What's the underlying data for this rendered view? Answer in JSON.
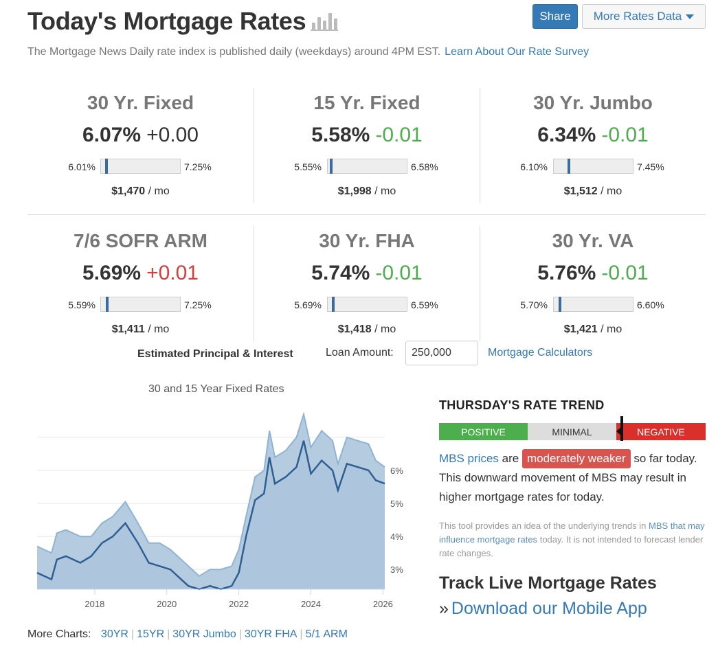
{
  "header": {
    "title": "Today's Mortgage Rates",
    "share_label": "Share",
    "more_label": "More Rates Data",
    "subtitle": "The Mortgage News Daily rate index is published daily (weekdays) around 4PM EST.",
    "subtitle_link": "Learn About Our Rate Survey"
  },
  "rates": [
    {
      "name": "30 Yr. Fixed",
      "value": "6.07%",
      "change": "+0.00",
      "direction": "flat",
      "low": "6.01%",
      "high": "7.25%",
      "position": 0.05,
      "payment": "$1,470",
      "per": " / mo"
    },
    {
      "name": "15 Yr. Fixed",
      "value": "5.58%",
      "change": "-0.01",
      "direction": "down",
      "low": "5.55%",
      "high": "6.58%",
      "position": 0.03,
      "payment": "$1,998",
      "per": " / mo"
    },
    {
      "name": "30 Yr. Jumbo",
      "value": "6.34%",
      "change": "-0.01",
      "direction": "down",
      "low": "6.10%",
      "high": "7.45%",
      "position": 0.18,
      "payment": "$1,512",
      "per": " / mo"
    },
    {
      "name": "7/6 SOFR ARM",
      "value": "5.69%",
      "change": "+0.01",
      "direction": "up",
      "low": "5.59%",
      "high": "7.25%",
      "position": 0.06,
      "payment": "$1,411",
      "per": " / mo"
    },
    {
      "name": "30 Yr. FHA",
      "value": "5.74%",
      "change": "-0.01",
      "direction": "down",
      "low": "5.69%",
      "high": "6.59%",
      "position": 0.05,
      "payment": "$1,418",
      "per": " / mo"
    },
    {
      "name": "30 Yr. VA",
      "value": "5.76%",
      "change": "-0.01",
      "direction": "down",
      "low": "5.70%",
      "high": "6.60%",
      "position": 0.06,
      "payment": "$1,421",
      "per": " / mo"
    }
  ],
  "calculator": {
    "label": "Estimated Principal & Interest",
    "loan_label": "Loan Amount:",
    "loan_value": "250,000",
    "link": "Mortgage Calculators"
  },
  "chart_data": {
    "type": "area",
    "title": "30 and 15 Year Fixed Rates",
    "x_ticks": [
      "2018",
      "2020",
      "2022",
      "2024",
      "2026"
    ],
    "y_ticks": [
      "3%",
      "4%",
      "5%",
      "6%"
    ],
    "ylim": [
      2.4,
      7.6
    ],
    "xlim": [
      2016.4,
      2026.05
    ],
    "grid": true,
    "series": [
      {
        "color": "#8fb3d3",
        "x": [
          2016.4,
          2016.8,
          2016.95,
          2017.2,
          2017.6,
          2017.9,
          2018.2,
          2018.5,
          2018.85,
          2019.2,
          2019.5,
          2019.8,
          2020.1,
          2020.3,
          2020.6,
          2020.9,
          2021.2,
          2021.5,
          2021.8,
          2022.0,
          2022.2,
          2022.45,
          2022.7,
          2022.85,
          2023.0,
          2023.3,
          2023.6,
          2023.8,
          2024.0,
          2024.3,
          2024.6,
          2024.75,
          2025.0,
          2025.3,
          2025.6,
          2025.8,
          2026.05
        ],
        "y": [
          3.7,
          3.5,
          4.1,
          4.2,
          4.0,
          4.0,
          4.4,
          4.6,
          5.05,
          4.4,
          3.8,
          3.8,
          3.6,
          3.4,
          3.1,
          2.8,
          3.0,
          3.0,
          3.1,
          3.6,
          4.6,
          5.8,
          6.0,
          7.2,
          6.4,
          6.6,
          7.0,
          7.7,
          6.7,
          7.2,
          6.9,
          6.2,
          7.0,
          6.9,
          6.8,
          6.3,
          6.1
        ]
      },
      {
        "color": "#2e5e92",
        "x": [
          2016.4,
          2016.8,
          2016.95,
          2017.2,
          2017.6,
          2017.9,
          2018.2,
          2018.5,
          2018.85,
          2019.2,
          2019.5,
          2019.8,
          2020.1,
          2020.3,
          2020.6,
          2020.9,
          2021.2,
          2021.5,
          2021.8,
          2022.0,
          2022.2,
          2022.45,
          2022.7,
          2022.85,
          2023.0,
          2023.3,
          2023.6,
          2023.8,
          2024.0,
          2024.3,
          2024.6,
          2024.75,
          2025.0,
          2025.3,
          2025.6,
          2025.8,
          2026.05
        ],
        "y": [
          2.9,
          2.7,
          3.3,
          3.4,
          3.2,
          3.4,
          3.8,
          4.0,
          4.4,
          3.8,
          3.2,
          3.1,
          3.0,
          2.8,
          2.5,
          2.4,
          2.5,
          2.4,
          2.5,
          2.9,
          4.0,
          5.1,
          5.3,
          6.4,
          5.6,
          5.8,
          6.1,
          6.9,
          5.9,
          6.3,
          6.0,
          5.4,
          6.2,
          6.1,
          6.0,
          5.7,
          5.6
        ]
      }
    ]
  },
  "more_charts": {
    "label": "More Charts:",
    "links": [
      "30YR",
      "15YR",
      "30YR Jumbo",
      "30YR FHA",
      "5/1 ARM"
    ]
  },
  "trend": {
    "title": "THURSDAY'S RATE TREND",
    "positive": "POSITIVE",
    "minimal": "MINIMAL",
    "negative": "NEGATIVE",
    "mbs_link": "MBS prices",
    "are": "are",
    "badge": "moderately weaker",
    "rest": "so far today. This downward movement of MBS may result in higher mortgage rates for today.",
    "note_before": "This tool provides an idea of the underlying trends in",
    "note_link": "MBS that may influence mortgage rates",
    "note_after": "today. It is not intended to forecast lender rate changes."
  },
  "track": {
    "title": "Track Live Mortgage Rates",
    "raquo": "»",
    "link": "Download our Mobile App"
  },
  "colors": {
    "accent": "#337ab7",
    "positive": "#4cae4c",
    "negative": "#d9302c",
    "neutral": "#dddddd"
  },
  "icons": {
    "title_icon": "bar-chart-icon",
    "more_caret": "caret-down-icon"
  }
}
